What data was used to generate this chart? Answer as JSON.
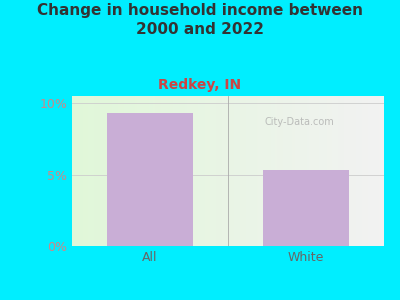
{
  "title": "Change in household income between\n2000 and 2022",
  "subtitle": "Redkey, IN",
  "categories": [
    "All",
    "White"
  ],
  "values": [
    9.3,
    5.3
  ],
  "bar_color": "#c9aed6",
  "title_fontsize": 11,
  "subtitle_fontsize": 10,
  "subtitle_color": "#cc4444",
  "title_color": "#333333",
  "background_color": "#00eeff",
  "ylabel_ticks": [
    0,
    5,
    10
  ],
  "ylabel_labels": [
    "0%",
    "5%",
    "10%"
  ],
  "tick_color": "#cc8888",
  "ylim": [
    0,
    10.5
  ],
  "watermark": "City-Data.com"
}
